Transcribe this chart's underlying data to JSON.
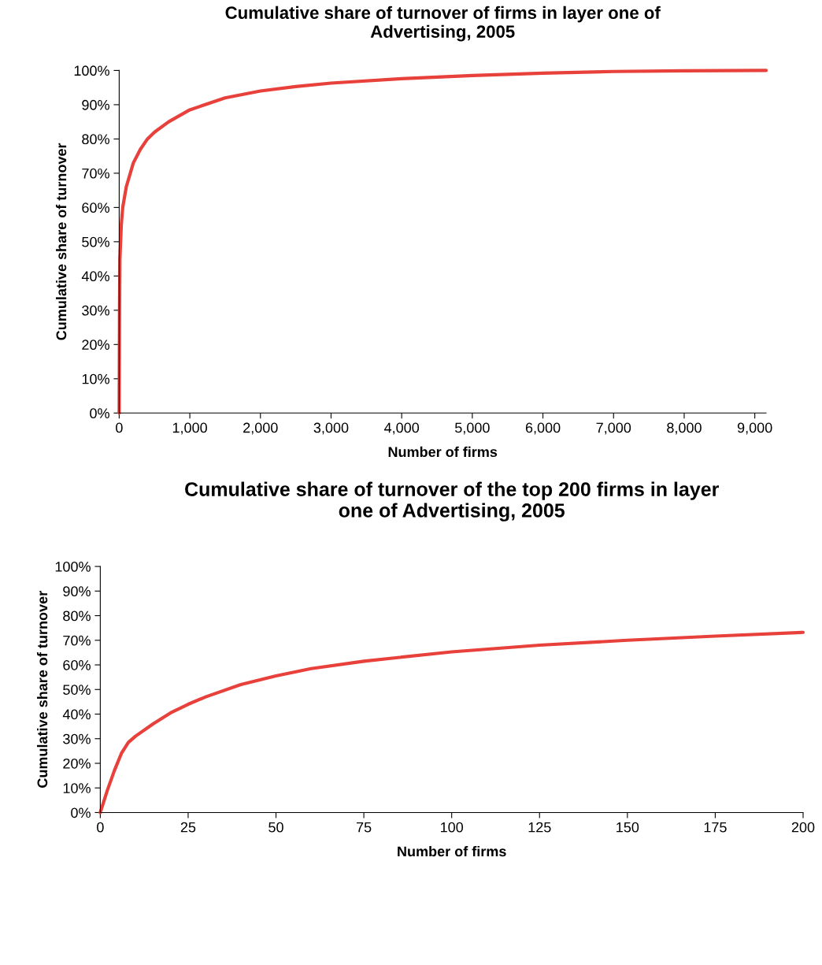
{
  "chart_data": [
    {
      "type": "line",
      "title": "Cumulative share of turnover of firms in layer one of\nAdvertising, 2005",
      "xlabel": "Number of firms",
      "ylabel": "Cumulative share of turnover",
      "grid": false,
      "marker": "none",
      "line_style": "solid",
      "xlim": [
        0,
        9160
      ],
      "xticks": [
        0,
        {
          "value": 1000,
          "label": "1,000"
        },
        {
          "value": 2000,
          "label": "2,000"
        },
        {
          "value": 3000,
          "label": "3,000"
        },
        {
          "value": 4000,
          "label": "4,000"
        },
        {
          "value": 5000,
          "label": "5,000"
        },
        {
          "value": 6000,
          "label": "6,000"
        },
        {
          "value": 7000,
          "label": "7,000"
        },
        {
          "value": 8000,
          "label": "8,000"
        },
        {
          "value": 9000,
          "label": "9,000"
        }
      ],
      "ylim": [
        0,
        100
      ],
      "yticks": [
        {
          "value": 0,
          "label": "0%"
        },
        {
          "value": 10,
          "label": "10%"
        },
        {
          "value": 20,
          "label": "20%"
        },
        {
          "value": 30,
          "label": "30%"
        },
        {
          "value": 40,
          "label": "40%"
        },
        {
          "value": 50,
          "label": "50%"
        },
        {
          "value": 60,
          "label": "60%"
        },
        {
          "value": 70,
          "label": "70%"
        },
        {
          "value": 80,
          "label": "80%"
        },
        {
          "value": 90,
          "label": "90%"
        },
        {
          "value": 100,
          "label": "100%"
        }
      ],
      "series": [
        {
          "color": "#e8403a",
          "x": [
            0,
            5,
            10,
            30,
            50,
            100,
            200,
            300,
            400,
            500,
            700,
            1000,
            1500,
            2000,
            2500,
            3000,
            4000,
            5000,
            6000,
            7000,
            8000,
            9160
          ],
          "values": [
            0,
            30,
            45,
            55,
            60,
            66,
            73,
            77,
            80,
            82,
            85,
            88.5,
            92,
            94,
            95.3,
            96.3,
            97.6,
            98.5,
            99.2,
            99.7,
            99.9,
            100
          ]
        }
      ]
    },
    {
      "type": "line",
      "title": "Cumulative share of turnover of the top 200 firms in layer\none of Advertising, 2005",
      "xlabel": "Number of firms",
      "ylabel": "Cumulative share of turnover",
      "grid": false,
      "marker": "none",
      "line_style": "solid",
      "xlim": [
        0,
        200
      ],
      "xticks": [
        0,
        25,
        50,
        75,
        100,
        125,
        150,
        175,
        200
      ],
      "ylim": [
        0,
        100
      ],
      "yticks": [
        {
          "value": 0,
          "label": "0%"
        },
        {
          "value": 10,
          "label": "10%"
        },
        {
          "value": 20,
          "label": "20%"
        },
        {
          "value": 30,
          "label": "30%"
        },
        {
          "value": 40,
          "label": "40%"
        },
        {
          "value": 50,
          "label": "50%"
        },
        {
          "value": 60,
          "label": "60%"
        },
        {
          "value": 70,
          "label": "70%"
        },
        {
          "value": 80,
          "label": "80%"
        },
        {
          "value": 90,
          "label": "90%"
        },
        {
          "value": 100,
          "label": "100%"
        }
      ],
      "series": [
        {
          "color": "#e8403a",
          "x": [
            0,
            2,
            4,
            6,
            8,
            10,
            15,
            20,
            25,
            30,
            40,
            50,
            60,
            75,
            100,
            125,
            150,
            175,
            200
          ],
          "values": [
            0,
            9,
            17,
            24,
            28.5,
            31,
            36,
            40.5,
            44,
            47,
            52,
            55.5,
            58.5,
            61.5,
            65.3,
            68,
            70,
            71.7,
            73.2
          ]
        }
      ]
    }
  ]
}
